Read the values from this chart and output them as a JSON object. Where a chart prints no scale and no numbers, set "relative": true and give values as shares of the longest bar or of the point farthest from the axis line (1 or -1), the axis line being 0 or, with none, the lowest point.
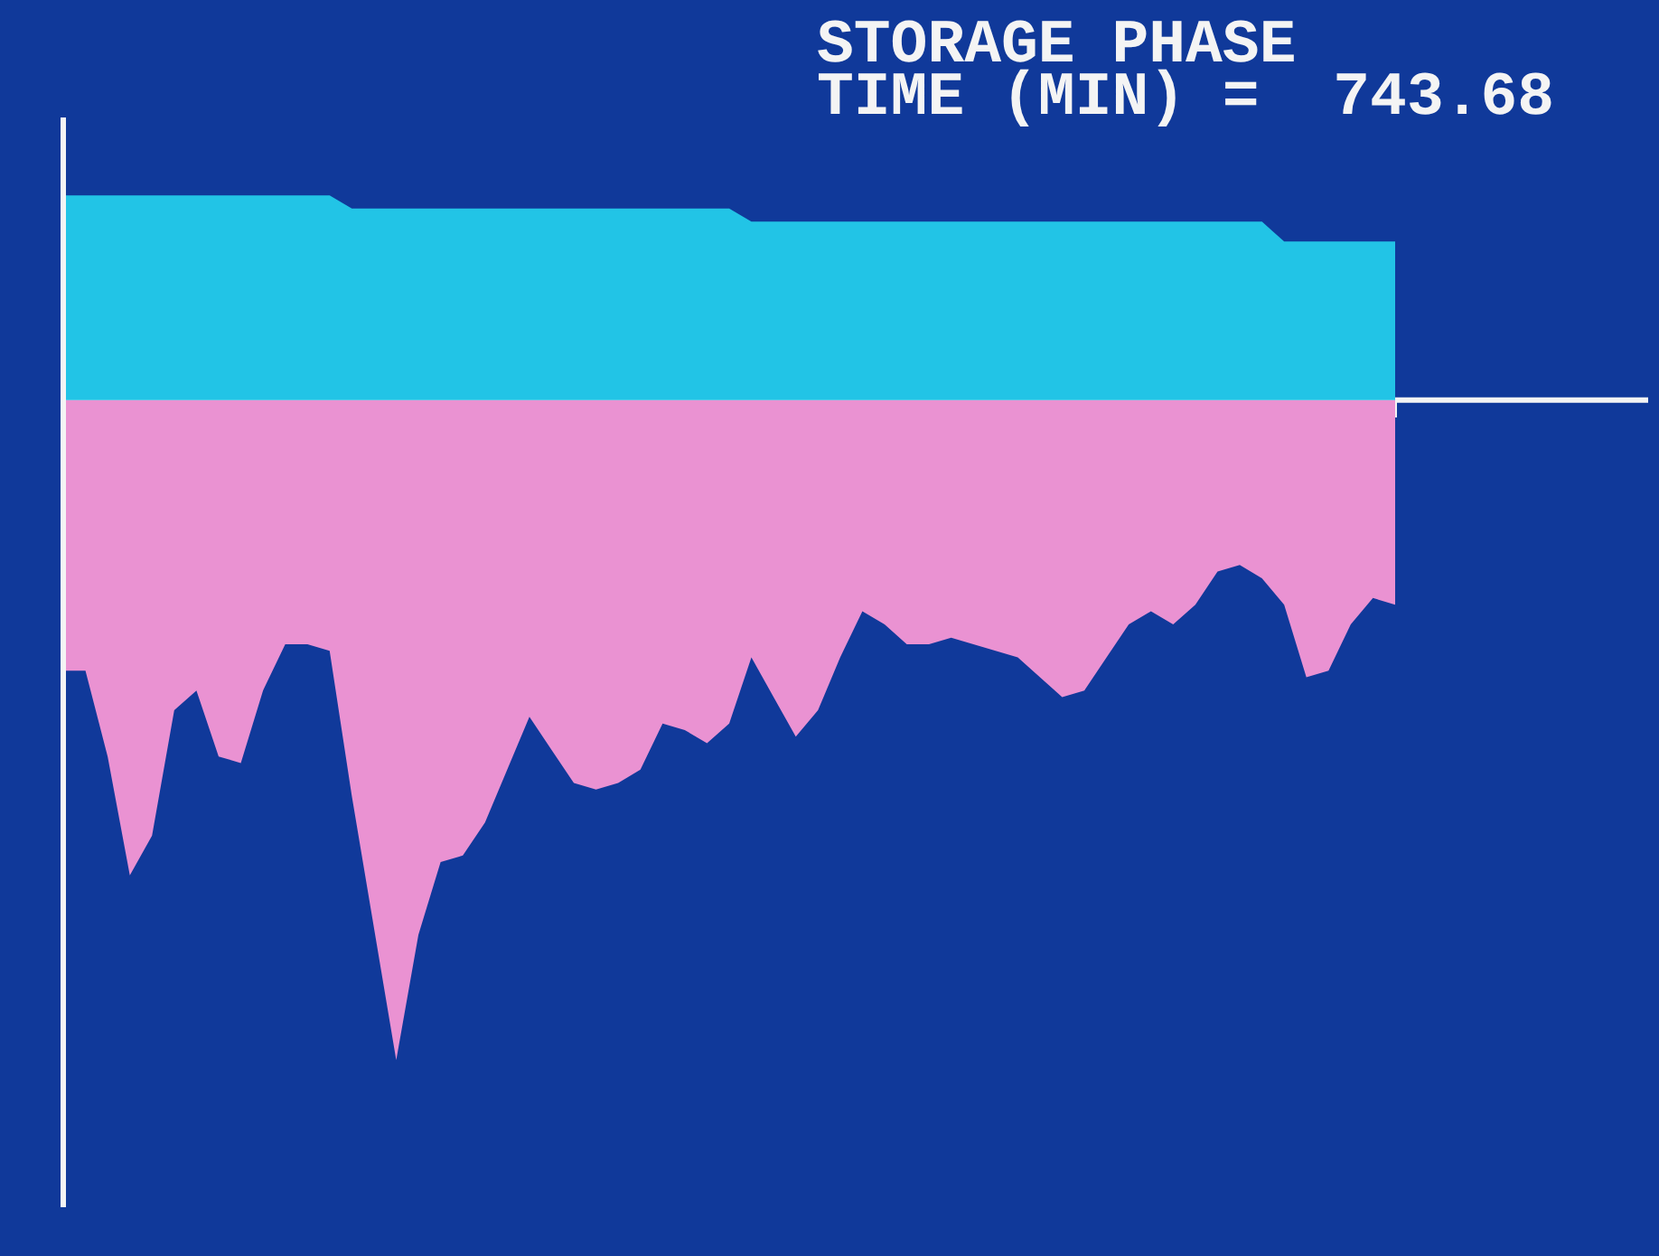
{
  "chart_data": {
    "type": "area",
    "title": "STORAGE PHASE",
    "subtitle": "TIME (MIN) =  743.68",
    "relative": true,
    "categories": [
      null,
      null,
      null,
      null,
      null,
      null,
      null,
      null,
      null,
      null,
      null,
      null,
      null,
      null,
      null,
      null,
      null,
      null,
      null,
      null,
      null,
      null,
      null,
      null,
      null,
      null,
      null,
      null,
      null,
      null,
      null,
      null,
      null,
      null,
      null,
      null,
      null,
      null,
      null,
      null,
      null,
      null,
      null,
      null,
      null,
      null,
      null,
      null,
      null,
      null,
      null,
      null,
      null,
      null,
      null,
      null,
      null,
      null,
      null,
      null,
      null
    ],
    "series": [
      {
        "color": "#22c4e6",
        "values": [
          0.31,
          0.31,
          0.31,
          0.31,
          0.31,
          0.31,
          0.31,
          0.31,
          0.31,
          0.31,
          0.31,
          0.31,
          0.31,
          0.29,
          0.29,
          0.29,
          0.29,
          0.29,
          0.29,
          0.29,
          0.29,
          0.29,
          0.29,
          0.29,
          0.29,
          0.29,
          0.29,
          0.29,
          0.29,
          0.29,
          0.29,
          0.27,
          0.27,
          0.27,
          0.27,
          0.27,
          0.27,
          0.27,
          0.27,
          0.27,
          0.27,
          0.27,
          0.27,
          0.27,
          0.27,
          0.27,
          0.27,
          0.27,
          0.27,
          0.27,
          0.27,
          0.27,
          0.27,
          0.27,
          0.27,
          0.24,
          0.24,
          0.24,
          0.24,
          0.24,
          0.24
        ]
      },
      {
        "color": "#ea92d2",
        "values": [
          -0.41,
          -0.41,
          -0.54,
          -0.72,
          -0.66,
          -0.47,
          -0.44,
          -0.54,
          -0.55,
          -0.44,
          -0.37,
          -0.37,
          -0.38,
          -0.6,
          -0.8,
          -1,
          -0.81,
          -0.7,
          -0.69,
          -0.64,
          -0.56,
          -0.48,
          -0.53,
          -0.58,
          -0.59,
          -0.58,
          -0.56,
          -0.49,
          -0.5,
          -0.52,
          -0.49,
          -0.39,
          -0.45,
          -0.51,
          -0.47,
          -0.39,
          -0.32,
          -0.34,
          -0.37,
          -0.37,
          -0.36,
          -0.37,
          -0.38,
          -0.39,
          -0.42,
          -0.45,
          -0.44,
          -0.39,
          -0.34,
          -0.32,
          -0.34,
          -0.31,
          -0.26,
          -0.25,
          -0.27,
          -0.31,
          -0.42,
          -0.41,
          -0.34,
          -0.3,
          -0.31
        ]
      }
    ]
  }
}
